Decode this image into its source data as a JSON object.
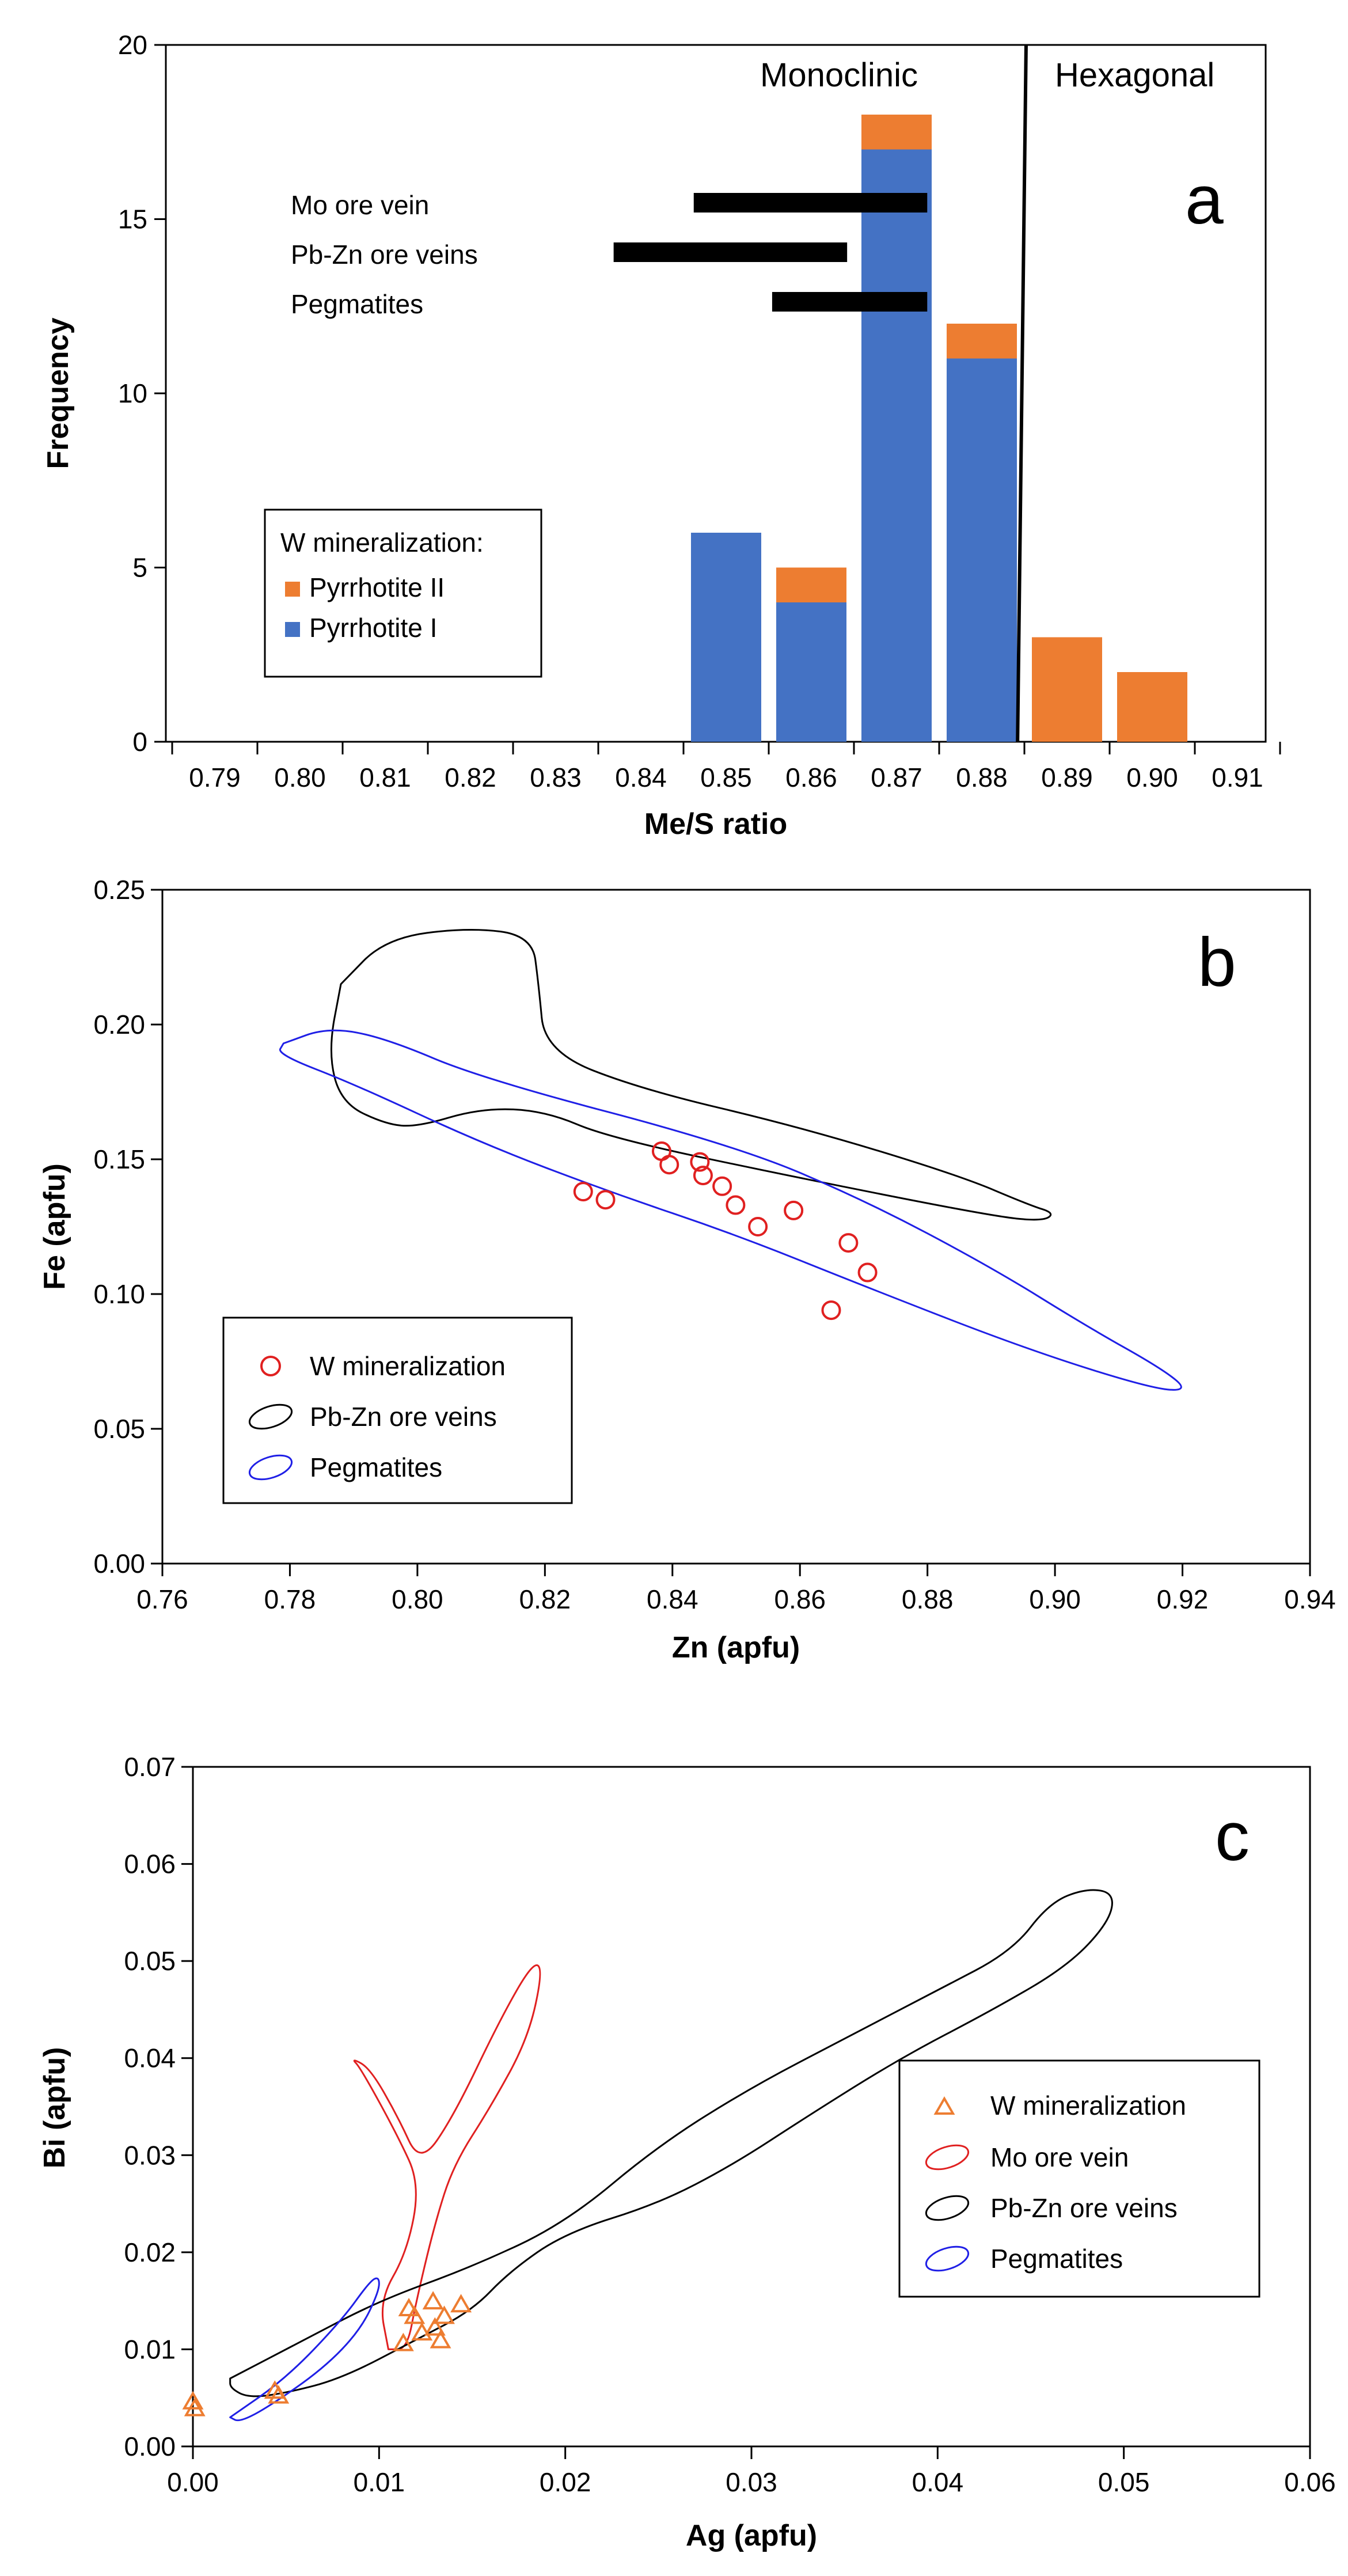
{
  "chart_data": [
    {
      "panel": "a",
      "type": "bar",
      "xlabel": "Me/S ratio",
      "ylabel": "Frequency",
      "ylim": [
        0,
        20
      ],
      "yticks": [
        "0",
        "5",
        "10",
        "15",
        "20"
      ],
      "categories": [
        "0.79",
        "0.80",
        "0.81",
        "0.82",
        "0.83",
        "0.84",
        "0.85",
        "0.86",
        "0.87",
        "0.88",
        "0.89",
        "0.90",
        "0.91"
      ],
      "series": [
        {
          "name": "Pyrrhotite I",
          "color": "#4472C4",
          "values": [
            0,
            0,
            0,
            0,
            0,
            0,
            6,
            4,
            17,
            11,
            0,
            0,
            0
          ]
        },
        {
          "name": "Pyrrhotite II",
          "color": "#ED7D31",
          "values": [
            0,
            0,
            0,
            0,
            0,
            0,
            0,
            1,
            1,
            1,
            3,
            2,
            0
          ]
        }
      ],
      "legend_title": "W mineralization:",
      "ranges": [
        {
          "label": "Mo ore vein",
          "min": 0.8462,
          "max": 0.8736
        },
        {
          "label": "Pb-Zn ore veins",
          "min": 0.8368,
          "max": 0.8642
        },
        {
          "label": "Pegmatites",
          "min": 0.8554,
          "max": 0.8736
        }
      ],
      "boundary": {
        "x_top": 0.8852,
        "x_bottom": 0.8842
      },
      "regions": [
        "Monoclinic",
        "Hexagonal"
      ]
    },
    {
      "panel": "b",
      "type": "scatter",
      "xlabel": "Zn (apfu)",
      "ylabel": "Fe (apfu)",
      "xlim": [
        0.76,
        0.94
      ],
      "ylim": [
        0.0,
        0.25
      ],
      "xticks": [
        "0.76",
        "0.78",
        "0.80",
        "0.82",
        "0.84",
        "0.86",
        "0.88",
        "0.90",
        "0.92",
        "0.94"
      ],
      "yticks": [
        "0.00",
        "0.05",
        "0.10",
        "0.15",
        "0.20",
        "0.25"
      ],
      "points": [
        {
          "x": 0.826,
          "y": 0.138
        },
        {
          "x": 0.8295,
          "y": 0.135
        },
        {
          "x": 0.8383,
          "y": 0.153
        },
        {
          "x": 0.8395,
          "y": 0.148
        },
        {
          "x": 0.8443,
          "y": 0.149
        },
        {
          "x": 0.8448,
          "y": 0.144
        },
        {
          "x": 0.8478,
          "y": 0.14
        },
        {
          "x": 0.8499,
          "y": 0.133
        },
        {
          "x": 0.8534,
          "y": 0.125
        },
        {
          "x": 0.859,
          "y": 0.131
        },
        {
          "x": 0.8649,
          "y": 0.094
        },
        {
          "x": 0.8676,
          "y": 0.119
        },
        {
          "x": 0.8706,
          "y": 0.108
        }
      ],
      "envelopes": [
        {
          "name": "Pb-Zn ore veins",
          "color": "#000000",
          "outline": [
            [
              0.788,
              0.215
            ],
            [
              0.795,
              0.232
            ],
            [
              0.808,
              0.236
            ],
            [
              0.818,
              0.233
            ],
            [
              0.819,
              0.215
            ],
            [
              0.82,
              0.19
            ],
            [
              0.835,
              0.176
            ],
            [
              0.86,
              0.162
            ],
            [
              0.885,
              0.144
            ],
            [
              0.896,
              0.133
            ],
            [
              0.9,
              0.13
            ],
            [
              0.898,
              0.127
            ],
            [
              0.89,
              0.129
            ],
            [
              0.86,
              0.143
            ],
            [
              0.83,
              0.158
            ],
            [
              0.82,
              0.168
            ],
            [
              0.81,
              0.169
            ],
            [
              0.8,
              0.162
            ],
            [
              0.795,
              0.163
            ],
            [
              0.788,
              0.171
            ],
            [
              0.786,
              0.19
            ],
            [
              0.788,
              0.215
            ]
          ]
        },
        {
          "name": "Pegmatites",
          "color": "#1F1FE6",
          "outline": [
            [
              0.779,
              0.193
            ],
            [
              0.786,
              0.199
            ],
            [
              0.795,
              0.195
            ],
            [
              0.81,
              0.18
            ],
            [
              0.85,
              0.155
            ],
            [
              0.87,
              0.135
            ],
            [
              0.89,
              0.11
            ],
            [
              0.905,
              0.088
            ],
            [
              0.917,
              0.072
            ],
            [
              0.921,
              0.064
            ],
            [
              0.915,
              0.065
            ],
            [
              0.895,
              0.08
            ],
            [
              0.87,
              0.103
            ],
            [
              0.85,
              0.122
            ],
            [
              0.83,
              0.138
            ],
            [
              0.81,
              0.156
            ],
            [
              0.79,
              0.178
            ],
            [
              0.778,
              0.189
            ],
            [
              0.779,
              0.193
            ]
          ]
        }
      ],
      "legend": [
        "W mineralization",
        "Pb-Zn ore veins",
        "Pegmatites"
      ]
    },
    {
      "panel": "c",
      "type": "scatter",
      "xlabel": "Ag (apfu)",
      "ylabel": "Bi (apfu)",
      "xlim": [
        0.0,
        0.06
      ],
      "ylim": [
        0.0,
        0.07
      ],
      "xticks": [
        "0.00",
        "0.01",
        "0.02",
        "0.03",
        "0.04",
        "0.05",
        "0.06"
      ],
      "yticks": [
        "0.00",
        "0.01",
        "0.02",
        "0.03",
        "0.04",
        "0.05",
        "0.06",
        "0.07"
      ],
      "points": [
        {
          "x": 0.0,
          "y": 0.0047
        },
        {
          "x": 0.0001,
          "y": 0.004
        },
        {
          "x": 0.0044,
          "y": 0.0058
        },
        {
          "x": 0.0046,
          "y": 0.0053
        },
        {
          "x": 0.0113,
          "y": 0.0107
        },
        {
          "x": 0.0116,
          "y": 0.0143
        },
        {
          "x": 0.0119,
          "y": 0.0135
        },
        {
          "x": 0.0123,
          "y": 0.0118
        },
        {
          "x": 0.0129,
          "y": 0.015
        },
        {
          "x": 0.013,
          "y": 0.0123
        },
        {
          "x": 0.0133,
          "y": 0.011
        },
        {
          "x": 0.0135,
          "y": 0.0135
        },
        {
          "x": 0.0144,
          "y": 0.0147
        }
      ],
      "envelopes": [
        {
          "name": "Mo ore vein",
          "color": "#E02020",
          "outline": [
            [
              0.0105,
              0.01
            ],
            [
              0.01,
              0.015
            ],
            [
              0.0115,
              0.02
            ],
            [
              0.0122,
              0.027
            ],
            [
              0.011,
              0.032
            ],
            [
              0.009,
              0.039
            ],
            [
              0.0085,
              0.04
            ],
            [
              0.0095,
              0.039
            ],
            [
              0.011,
              0.034
            ],
            [
              0.0122,
              0.029
            ],
            [
              0.014,
              0.034
            ],
            [
              0.0165,
              0.044
            ],
            [
              0.0183,
              0.05
            ],
            [
              0.0188,
              0.049
            ],
            [
              0.018,
              0.042
            ],
            [
              0.016,
              0.035
            ],
            [
              0.014,
              0.029
            ],
            [
              0.013,
              0.023
            ],
            [
              0.012,
              0.015
            ],
            [
              0.0115,
              0.01
            ],
            [
              0.0105,
              0.01
            ]
          ]
        },
        {
          "name": "Pb-Zn ore veins",
          "color": "#000000",
          "outline": [
            [
              0.002,
              0.007
            ],
            [
              0.006,
              0.011
            ],
            [
              0.01,
              0.015
            ],
            [
              0.015,
              0.0185
            ],
            [
              0.02,
              0.023
            ],
            [
              0.025,
              0.031
            ],
            [
              0.03,
              0.037
            ],
            [
              0.035,
              0.042
            ],
            [
              0.04,
              0.047
            ],
            [
              0.044,
              0.051
            ],
            [
              0.046,
              0.056
            ],
            [
              0.048,
              0.0575
            ],
            [
              0.0495,
              0.057
            ],
            [
              0.0492,
              0.054
            ],
            [
              0.047,
              0.0495
            ],
            [
              0.043,
              0.045
            ],
            [
              0.038,
              0.04
            ],
            [
              0.033,
              0.034
            ],
            [
              0.029,
              0.029
            ],
            [
              0.025,
              0.025
            ],
            [
              0.02,
              0.022
            ],
            [
              0.017,
              0.018
            ],
            [
              0.015,
              0.014
            ],
            [
              0.012,
              0.011
            ],
            [
              0.008,
              0.007
            ],
            [
              0.005,
              0.0055
            ],
            [
              0.003,
              0.005
            ],
            [
              0.002,
              0.006
            ],
            [
              0.002,
              0.007
            ]
          ]
        },
        {
          "name": "Pegmatites",
          "color": "#1F1FE6",
          "outline": [
            [
              0.002,
              0.003
            ],
            [
              0.005,
              0.007
            ],
            [
              0.008,
              0.013
            ],
            [
              0.0095,
              0.017
            ],
            [
              0.01,
              0.0175
            ],
            [
              0.01,
              0.016
            ],
            [
              0.009,
              0.012
            ],
            [
              0.007,
              0.008
            ],
            [
              0.004,
              0.004
            ],
            [
              0.0025,
              0.0025
            ],
            [
              0.002,
              0.003
            ]
          ]
        }
      ],
      "legend": [
        "W mineralization",
        "Mo ore vein",
        "Pb-Zn ore veins",
        "Pegmatites"
      ]
    }
  ],
  "text": {
    "a_letter": "a",
    "b_letter": "b",
    "c_letter": "c",
    "monoclinic": "Monoclinic",
    "hexagonal": "Hexagonal",
    "legend_a_title": "W mineralization:",
    "legend_a_item1": "Pyrrhotite II",
    "legend_a_item2": "Pyrrhotite I",
    "range1": "Mo ore vein",
    "range2": "Pb-Zn ore veins",
    "range3": "Pegmatites",
    "a_xlabel": "Me/S ratio",
    "a_ylabel": "Frequency",
    "b_xlabel": "Zn (apfu)",
    "b_ylabel": "Fe (apfu)",
    "c_xlabel": "Ag (apfu)",
    "c_ylabel": "Bi (apfu)",
    "b_leg1": "W mineralization",
    "b_leg2": "Pb-Zn ore veins",
    "b_leg3": "Pegmatites",
    "c_leg1": "W mineralization",
    "c_leg2": "Mo ore vein",
    "c_leg3": "Pb-Zn ore veins",
    "c_leg4": "Pegmatites"
  },
  "colors": {
    "pyrrhotite1": "#4472C4",
    "pyrrhotite2": "#ED7D31",
    "w_circle": "#E02020",
    "w_triangle": "#ED7D31"
  }
}
